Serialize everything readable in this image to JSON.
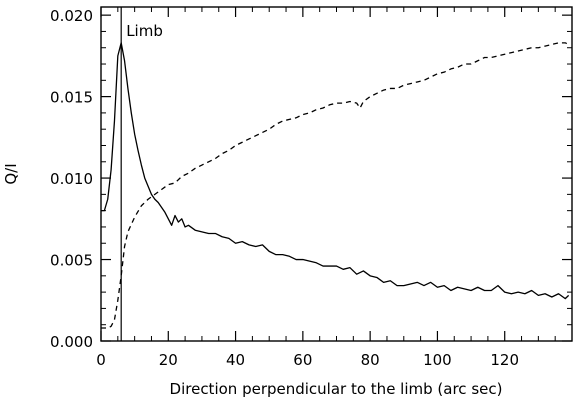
{
  "chart_data": {
    "type": "line",
    "title": "",
    "xlabel": "Direction perpendicular to the limb (arc sec)",
    "ylabel": "Q/I",
    "xlim": [
      0,
      140
    ],
    "ylim": [
      0.0,
      0.0205
    ],
    "xticks": [
      0,
      20,
      40,
      60,
      80,
      100,
      120
    ],
    "xtick_labels": [
      "0",
      "20",
      "40",
      "60",
      "80",
      "100",
      "120"
    ],
    "yticks": [
      0.0,
      0.005,
      0.01,
      0.015,
      0.02
    ],
    "ytick_labels": [
      "0.000",
      "0.005",
      "0.010",
      "0.015",
      "0.020"
    ],
    "grid": false,
    "annotations": [
      {
        "text": "Limb",
        "type": "vertical-line",
        "x": 6
      }
    ],
    "series": [
      {
        "style": "solid",
        "x": [
          0,
          1,
          2,
          3,
          4,
          5,
          6,
          7,
          8,
          9,
          10,
          11,
          12,
          13,
          14,
          15,
          16,
          17,
          18,
          19,
          20,
          21,
          22,
          23,
          24,
          25,
          26,
          28,
          30,
          32,
          34,
          36,
          38,
          40,
          42,
          44,
          46,
          48,
          50,
          52,
          54,
          56,
          58,
          60,
          62,
          64,
          66,
          68,
          70,
          72,
          74,
          76,
          78,
          80,
          82,
          84,
          86,
          88,
          90,
          92,
          94,
          96,
          98,
          100,
          102,
          104,
          106,
          108,
          110,
          112,
          114,
          116,
          118,
          120,
          122,
          124,
          126,
          128,
          130,
          132,
          134,
          136,
          138,
          139
        ],
        "values": [
          0.008,
          0.008,
          0.0087,
          0.0105,
          0.0135,
          0.0175,
          0.0183,
          0.0172,
          0.0155,
          0.014,
          0.0127,
          0.0117,
          0.0108,
          0.01,
          0.0095,
          0.009,
          0.0087,
          0.0085,
          0.0082,
          0.0079,
          0.0075,
          0.0071,
          0.0077,
          0.0073,
          0.0075,
          0.007,
          0.0071,
          0.0068,
          0.0067,
          0.0066,
          0.0066,
          0.0064,
          0.0063,
          0.006,
          0.0061,
          0.0059,
          0.0058,
          0.0059,
          0.0055,
          0.0053,
          0.0053,
          0.0052,
          0.005,
          0.005,
          0.0049,
          0.0048,
          0.0046,
          0.0046,
          0.0046,
          0.0044,
          0.0045,
          0.0041,
          0.0043,
          0.004,
          0.0039,
          0.0036,
          0.0037,
          0.0034,
          0.0034,
          0.0035,
          0.0036,
          0.0034,
          0.0036,
          0.0033,
          0.0034,
          0.0031,
          0.0033,
          0.0032,
          0.0031,
          0.0033,
          0.0031,
          0.0031,
          0.0034,
          0.003,
          0.0029,
          0.003,
          0.0029,
          0.0031,
          0.0028,
          0.0029,
          0.0027,
          0.0029,
          0.0026,
          0.0028
        ]
      },
      {
        "style": "dashed",
        "x": [
          0,
          2,
          3,
          4,
          5,
          6,
          7,
          8,
          10,
          12,
          14,
          16,
          18,
          20,
          22,
          24,
          26,
          28,
          30,
          32,
          34,
          36,
          38,
          40,
          42,
          44,
          46,
          48,
          50,
          52,
          54,
          56,
          58,
          60,
          62,
          64,
          66,
          68,
          70,
          72,
          74,
          76,
          77,
          78,
          80,
          82,
          84,
          86,
          88,
          90,
          92,
          94,
          96,
          98,
          100,
          102,
          104,
          106,
          108,
          110,
          112,
          114,
          116,
          118,
          120,
          122,
          124,
          126,
          128,
          130,
          132,
          134,
          136,
          138,
          139
        ],
        "values": [
          0.0008,
          0.0008,
          0.0009,
          0.0013,
          0.0025,
          0.004,
          0.0058,
          0.0067,
          0.0076,
          0.0083,
          0.0087,
          0.009,
          0.0093,
          0.0096,
          0.0097,
          0.0101,
          0.0103,
          0.0106,
          0.0108,
          0.011,
          0.0112,
          0.0115,
          0.0117,
          0.012,
          0.0122,
          0.0124,
          0.0126,
          0.0128,
          0.013,
          0.0133,
          0.0135,
          0.0136,
          0.0137,
          0.0139,
          0.014,
          0.0142,
          0.0143,
          0.0145,
          0.0146,
          0.0146,
          0.0147,
          0.0146,
          0.0143,
          0.0147,
          0.015,
          0.0152,
          0.0154,
          0.0155,
          0.0155,
          0.0157,
          0.0158,
          0.0159,
          0.016,
          0.0162,
          0.0164,
          0.0165,
          0.0167,
          0.0168,
          0.017,
          0.017,
          0.0172,
          0.0174,
          0.0174,
          0.0175,
          0.0176,
          0.0177,
          0.0178,
          0.0179,
          0.018,
          0.018,
          0.0181,
          0.0182,
          0.0183,
          0.0183,
          0.0182
        ]
      }
    ]
  }
}
